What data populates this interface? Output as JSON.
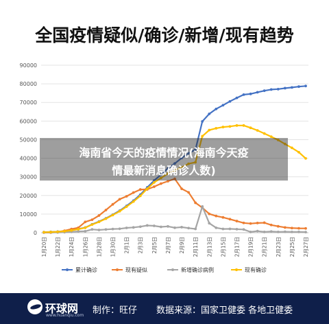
{
  "chart_data": {
    "type": "line",
    "title": "全国疫情疑似/确诊/新增/现有趋势",
    "categories": [
      "1月20日",
      "1月21日",
      "1月22日",
      "1月23日",
      "1月24日",
      "1月25日",
      "1月26日",
      "1月27日",
      "1月28日",
      "1月29日",
      "1月30日",
      "1月31日",
      "2月1日",
      "2月2日",
      "2月3日",
      "2月4日",
      "2月5日",
      "2月6日",
      "2月7日",
      "2月8日",
      "2月9日",
      "2月10日",
      "2月11日",
      "2月12日",
      "2月13日",
      "2月14日",
      "2月15日",
      "2月16日",
      "2月17日",
      "2月18日",
      "2月19日",
      "2月20日",
      "2月21日",
      "2月22日",
      "2月23日",
      "2月24日",
      "2月25日",
      "2月26日",
      "2月27日"
    ],
    "xticks": [
      "1月20日",
      "1月22日",
      "1月24日",
      "1月26日",
      "1月28日",
      "1月30日",
      "2月1日",
      "2月3日",
      "2月5日",
      "2月7日",
      "2月9日",
      "2月11日",
      "2月13日",
      "2月15日",
      "2月17日",
      "2月19日",
      "2月21日",
      "2月23日",
      "2月25日",
      "2月27日"
    ],
    "yticks": [
      0,
      10000,
      20000,
      30000,
      40000,
      50000,
      60000,
      70000,
      80000,
      90000
    ],
    "ylim": [
      0,
      90000
    ],
    "grid": true,
    "legend_position": "bottom",
    "series": [
      {
        "name": "累计确诊",
        "color": "#4472c4",
        "values": [
          291,
          440,
          571,
          830,
          1287,
          1975,
          2744,
          4515,
          5974,
          7711,
          9692,
          11791,
          14380,
          17205,
          20438,
          24324,
          28018,
          31161,
          34546,
          37198,
          40171,
          42638,
          44653,
          59804,
          63851,
          66492,
          68500,
          70548,
          72436,
          74185,
          74576,
          75465,
          76288,
          76936,
          77150,
          77658,
          78064,
          78497,
          78824
        ]
      },
      {
        "name": "现有疑似",
        "color": "#ed7d31",
        "values": [
          54,
          37,
          393,
          1072,
          1965,
          2684,
          5794,
          6973,
          9239,
          12167,
          15238,
          17988,
          19544,
          21558,
          23214,
          23260,
          24702,
          26359,
          27657,
          28942,
          23589,
          21675,
          16067,
          13435,
          10109,
          8969,
          8228,
          7264,
          6242,
          5248,
          4922,
          5206,
          5365,
          4148,
          3434,
          2824,
          2491,
          2358,
          2308
        ]
      },
      {
        "name": "新增确诊病例",
        "color": "#a5a5a5",
        "values": [
          77,
          149,
          131,
          259,
          444,
          688,
          769,
          1771,
          1459,
          1737,
          1982,
          2102,
          2590,
          2829,
          3235,
          3887,
          3694,
          3143,
          3385,
          2652,
          2973,
          2467,
          2015,
          14108,
          5090,
          2641,
          2008,
          2048,
          1886,
          1749,
          394,
          889,
          397,
          648,
          409,
          508,
          406,
          433,
          327
        ]
      },
      {
        "name": "现有确诊",
        "color": "#ffc000",
        "values": [
          270,
          375,
          509,
          780,
          1220,
          1875,
          2646,
          4393,
          5806,
          7521,
          9480,
          11522,
          13994,
          16741,
          19782,
          23637,
          27000,
          29400,
          31774,
          33584,
          35116,
          37034,
          37839,
          51859,
          55138,
          56090,
          56776,
          57086,
          57610,
          57601,
          56358,
          54965,
          53284,
          51606,
          49824,
          47672,
          45604,
          43258,
          39919
        ]
      }
    ]
  },
  "overlay": {
    "line1": "海南省今天的疫情情况(海南今天疫",
    "line2": "情最新消息确诊人数)"
  },
  "footer": {
    "logo_name": "环球网",
    "logo_url": "www.huanqiu.com",
    "maker": "制作：旺仔",
    "source": "数据来源：国家卫健委 各地卫健委"
  }
}
